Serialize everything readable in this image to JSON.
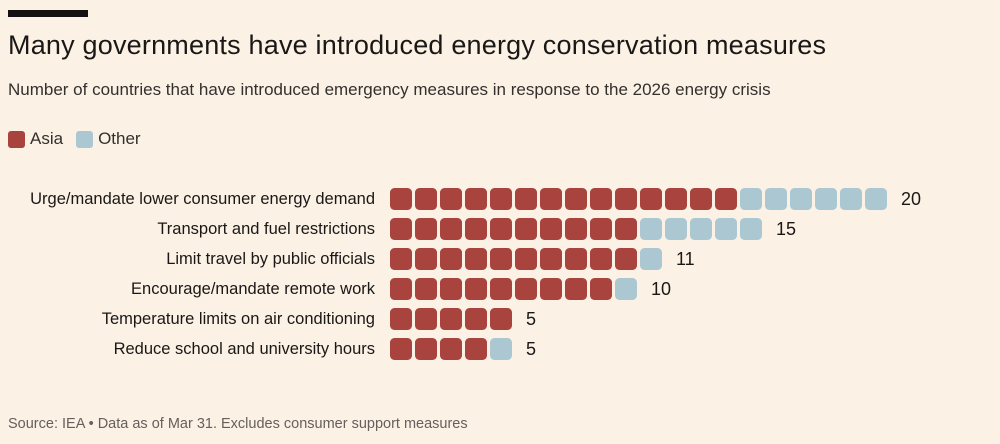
{
  "meta": {
    "background_color": "#FBF1E5",
    "rule_color": "#141210",
    "asia_color": "#A8433E",
    "other_color": "#ABC8D2"
  },
  "header": {
    "title": "Many governments have introduced energy conservation measures",
    "subtitle": "Number of countries that have introduced emergency measures in response to the 2026 energy crisis"
  },
  "legend": [
    {
      "label": "Asia",
      "color": "#A8433E"
    },
    {
      "label": "Other",
      "color": "#ABC8D2"
    }
  ],
  "chart_data": {
    "type": "bar",
    "variant": "unit-square-stacked-horizontal",
    "title": "Many governments have introduced energy conservation measures",
    "subtitle": "Number of countries that have introduced emergency measures in response to the 2026 energy crisis",
    "categories": [
      "Urge/mandate lower consumer energy demand",
      "Transport and fuel restrictions",
      "Limit travel by public officials",
      "Encourage/mandate remote work",
      "Temperature limits on air conditioning",
      "Reduce school and university hours"
    ],
    "series": [
      {
        "name": "Asia",
        "color": "#A8433E",
        "values": [
          14,
          10,
          10,
          9,
          5,
          4
        ]
      },
      {
        "name": "Other",
        "color": "#ABC8D2",
        "values": [
          6,
          5,
          1,
          1,
          0,
          1
        ]
      }
    ],
    "totals": [
      20,
      15,
      11,
      10,
      5,
      5
    ],
    "xlabel": "",
    "ylabel": "",
    "grid": false,
    "legend_position": "top-left",
    "value_labels": "end-of-bar"
  },
  "footer": {
    "source": "Source: IEA • Data as of Mar 31. Excludes consumer support measures"
  }
}
